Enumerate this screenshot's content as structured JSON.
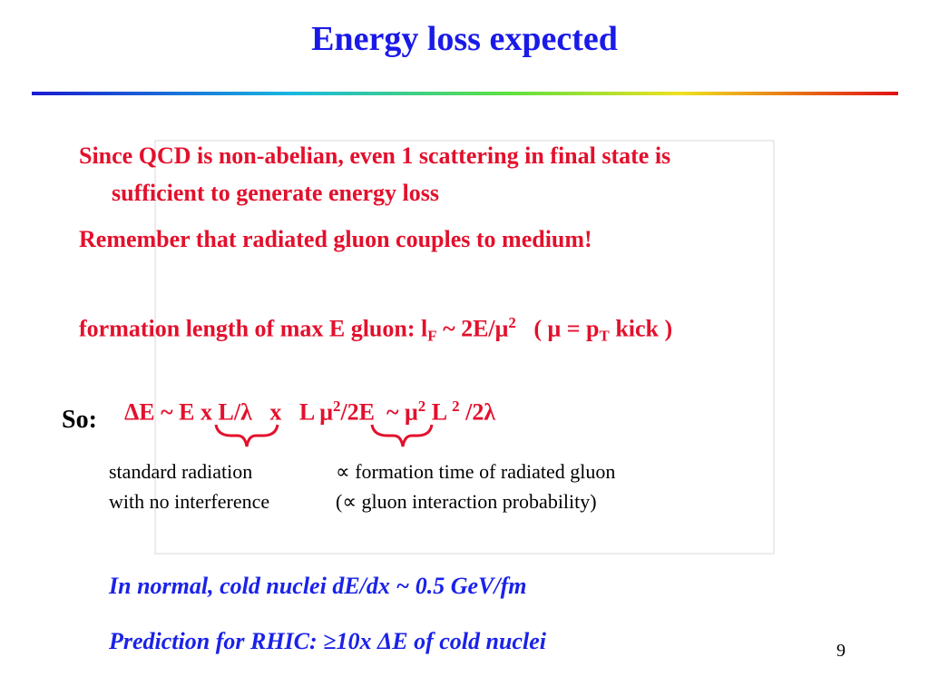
{
  "title": "Energy loss expected",
  "bullets": [
    "Since QCD is non-abelian, even 1 scattering in final state is",
    "sufficient to generate energy loss",
    "Remember that radiated gluon couples to medium!"
  ],
  "formation": [
    "formation length of max E gluon: l",
    "F",
    " ~ 2E/μ",
    "2",
    "   ( μ = p",
    "T",
    " kick )"
  ],
  "so_label": "So:",
  "equation": [
    "ΔE ~ E x L/λ   x   L μ",
    "2",
    "/2E  ~ μ",
    "2",
    " L ",
    "2",
    " /2λ"
  ],
  "notes_left": [
    "standard radiation",
    "with no interference"
  ],
  "notes_right": [
    "∝ formation time of radiated gluon",
    "(∝ gluon interaction probability)"
  ],
  "conclusions": [
    "In normal, cold nuclei dE/dx ~ 0.5 GeV/fm",
    "Prediction for RHIC: ≥10x ΔE of cold nuclei"
  ],
  "page_number": "9"
}
